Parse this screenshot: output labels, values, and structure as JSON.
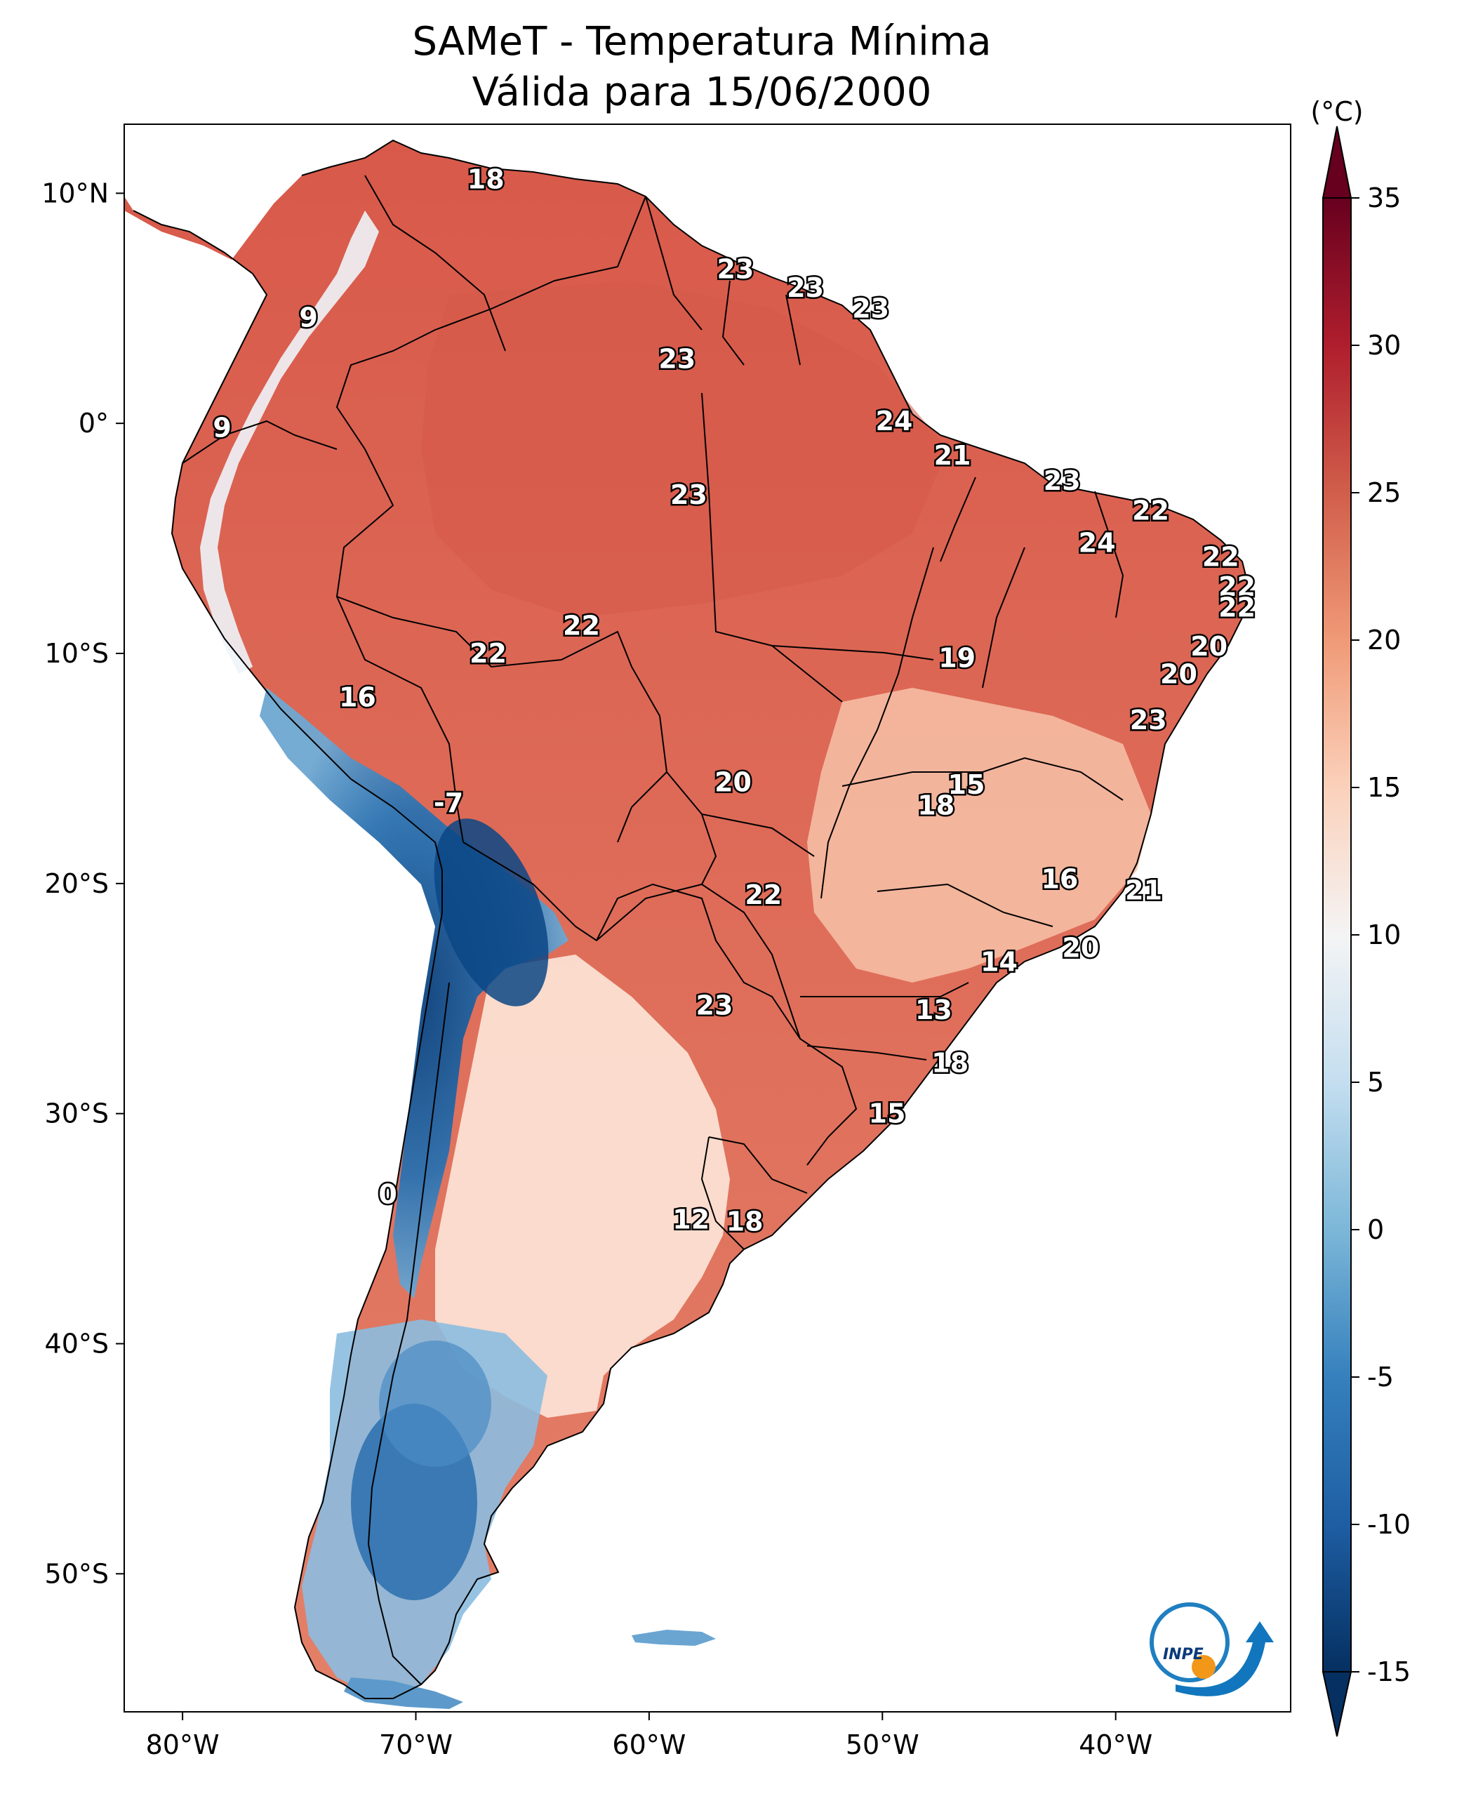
{
  "title": {
    "line1": "SAMeT - Temperatura Mínima",
    "line2": "Válida para 15/06/2000"
  },
  "map": {
    "lon_range": [
      -82.5,
      -32.5
    ],
    "lat_range": [
      -56,
      13
    ],
    "lon_ticks": [
      {
        "value": -80,
        "label": "80°W"
      },
      {
        "value": -70,
        "label": "70°W"
      },
      {
        "value": -60,
        "label": "60°W"
      },
      {
        "value": -50,
        "label": "50°W"
      },
      {
        "value": -40,
        "label": "40°W"
      }
    ],
    "lat_ticks": [
      {
        "value": 10,
        "label": "10°N"
      },
      {
        "value": 0,
        "label": "0°"
      },
      {
        "value": -10,
        "label": "10°S"
      },
      {
        "value": -20,
        "label": "20°S"
      },
      {
        "value": -30,
        "label": "30°S"
      },
      {
        "value": -40,
        "label": "40°S"
      },
      {
        "value": -50,
        "label": "50°S"
      }
    ],
    "station_values": [
      {
        "text": "18",
        "lon": -67.0,
        "lat": 10.6
      },
      {
        "text": "23",
        "lon": -56.3,
        "lat": 6.7
      },
      {
        "text": "23",
        "lon": -53.3,
        "lat": 5.9
      },
      {
        "text": "23",
        "lon": -50.5,
        "lat": 5.0
      },
      {
        "text": "9",
        "lon": -74.6,
        "lat": 4.6
      },
      {
        "text": "23",
        "lon": -58.8,
        "lat": 2.8
      },
      {
        "text": "24",
        "lon": -49.5,
        "lat": 0.1
      },
      {
        "text": "9",
        "lon": -78.3,
        "lat": -0.2
      },
      {
        "text": "21",
        "lon": -47.0,
        "lat": -1.4
      },
      {
        "text": "23",
        "lon": -42.3,
        "lat": -2.5
      },
      {
        "text": "23",
        "lon": -58.3,
        "lat": -3.1
      },
      {
        "text": "22",
        "lon": -38.5,
        "lat": -3.8
      },
      {
        "text": "24",
        "lon": -40.8,
        "lat": -5.2
      },
      {
        "text": "22",
        "lon": -35.5,
        "lat": -5.8
      },
      {
        "text": "22",
        "lon": -34.8,
        "lat": -7.1
      },
      {
        "text": "22",
        "lon": -34.8,
        "lat": -8.0
      },
      {
        "text": "22",
        "lon": -62.9,
        "lat": -8.8
      },
      {
        "text": "20",
        "lon": -36.0,
        "lat": -9.7
      },
      {
        "text": "22",
        "lon": -66.9,
        "lat": -10.0
      },
      {
        "text": "19",
        "lon": -46.8,
        "lat": -10.2
      },
      {
        "text": "20",
        "lon": -37.3,
        "lat": -10.9
      },
      {
        "text": "16",
        "lon": -72.5,
        "lat": -11.9
      },
      {
        "text": "23",
        "lon": -38.6,
        "lat": -12.9
      },
      {
        "text": "20",
        "lon": -56.4,
        "lat": -15.6
      },
      {
        "text": "15",
        "lon": -46.4,
        "lat": -15.7
      },
      {
        "text": "18",
        "lon": -47.7,
        "lat": -16.6
      },
      {
        "text": "-7",
        "lon": -68.6,
        "lat": -16.5
      },
      {
        "text": "16",
        "lon": -42.4,
        "lat": -19.8
      },
      {
        "text": "22",
        "lon": -55.1,
        "lat": -20.5
      },
      {
        "text": "21",
        "lon": -38.8,
        "lat": -20.3
      },
      {
        "text": "20",
        "lon": -41.5,
        "lat": -22.8
      },
      {
        "text": "14",
        "lon": -45.0,
        "lat": -23.4
      },
      {
        "text": "23",
        "lon": -57.2,
        "lat": -25.3
      },
      {
        "text": "13",
        "lon": -47.8,
        "lat": -25.5
      },
      {
        "text": "18",
        "lon": -47.1,
        "lat": -27.8
      },
      {
        "text": "15",
        "lon": -49.8,
        "lat": -30.0
      },
      {
        "text": "0",
        "lon": -71.2,
        "lat": -33.5
      },
      {
        "text": "12",
        "lon": -58.2,
        "lat": -34.6
      },
      {
        "text": "18",
        "lon": -55.9,
        "lat": -34.7
      }
    ]
  },
  "colorbar": {
    "unit_label": "(°C)",
    "min": -15,
    "max": 35,
    "ticks": [
      {
        "value": 35,
        "label": "35"
      },
      {
        "value": 30,
        "label": "30"
      },
      {
        "value": 25,
        "label": "25"
      },
      {
        "value": 20,
        "label": "20"
      },
      {
        "value": 15,
        "label": "15"
      },
      {
        "value": 10,
        "label": "10"
      },
      {
        "value": 5,
        "label": "5"
      },
      {
        "value": 0,
        "label": "0"
      },
      {
        "value": -5,
        "label": "-5"
      },
      {
        "value": -10,
        "label": "-10"
      },
      {
        "value": -15,
        "label": "-15"
      }
    ],
    "colormap": "RdBu_r",
    "colors": [
      "#053061",
      "#2166ac",
      "#4393c3",
      "#92c5de",
      "#d1e5f0",
      "#f7f7f7",
      "#fddbc7",
      "#f4a582",
      "#d6604d",
      "#b2182b",
      "#67001f"
    ]
  },
  "logo": {
    "text": "INPE"
  }
}
